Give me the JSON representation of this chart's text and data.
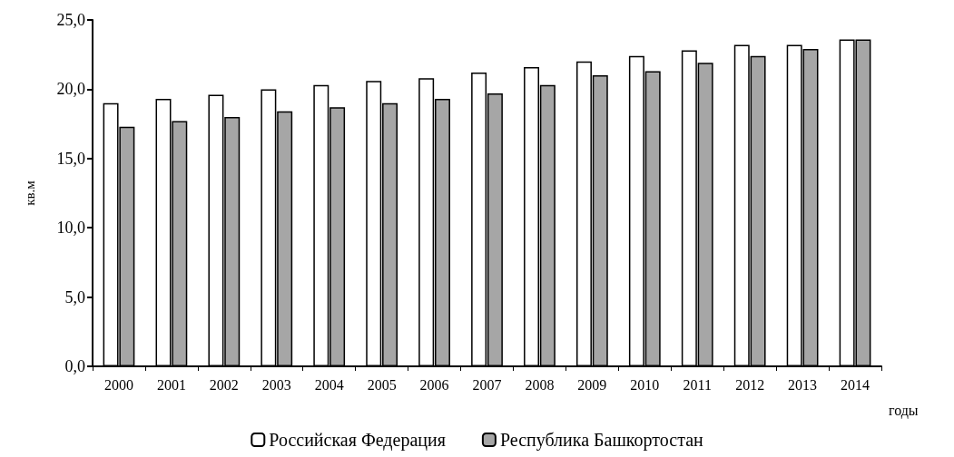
{
  "chart_data": {
    "type": "bar",
    "xlabel": "годы",
    "ylabel": "кв.м",
    "categories": [
      "2000",
      "2001",
      "2002",
      "2003",
      "2004",
      "2005",
      "2006",
      "2007",
      "2008",
      "2009",
      "2010",
      "2011",
      "2012",
      "2013",
      "2014"
    ],
    "series": [
      {
        "name": "Российская Федерация",
        "color": "#ffffff",
        "values": [
          19.0,
          19.3,
          19.6,
          20.0,
          20.3,
          20.6,
          20.8,
          21.2,
          21.6,
          22.0,
          22.4,
          22.8,
          23.2,
          23.2,
          23.6
        ]
      },
      {
        "name": "Республика Башкортостан",
        "color": "#a6a6a6",
        "values": [
          17.3,
          17.7,
          18.0,
          18.4,
          18.7,
          19.0,
          19.3,
          19.7,
          20.3,
          21.0,
          21.3,
          21.9,
          22.4,
          22.9,
          23.6
        ]
      }
    ],
    "ylim": [
      0,
      25
    ],
    "yticks": [
      {
        "value": 0,
        "label": "0,0"
      },
      {
        "value": 5,
        "label": "5,0"
      },
      {
        "value": 10,
        "label": "10,0"
      },
      {
        "value": 15,
        "label": "15,0"
      },
      {
        "value": 20,
        "label": "20,0"
      },
      {
        "value": 25,
        "label": "25,0"
      }
    ],
    "grid": false,
    "legend": "bottom"
  }
}
